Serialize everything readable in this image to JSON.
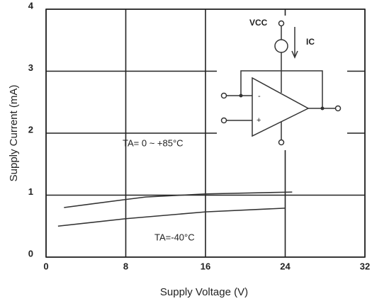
{
  "chart_data": {
    "type": "line",
    "x_label": "Supply Voltage (V)",
    "y_label": "Supply Current (mA)",
    "xlim": [
      0,
      32
    ],
    "xticks": [
      0,
      8,
      16,
      24,
      32
    ],
    "ylim": [
      0,
      4
    ],
    "yticks": [
      0,
      1,
      2,
      3,
      4
    ],
    "grid": true,
    "series": [
      {
        "name": "TA= 0 ~ +85°C",
        "color": "#333333",
        "x": [
          1.8,
          8,
          10,
          16,
          24.7
        ],
        "values": [
          0.8,
          0.93,
          0.97,
          1.02,
          1.05
        ]
      },
      {
        "name": "TA=-40°C",
        "color": "#333333",
        "x": [
          1.2,
          8,
          16,
          24
        ],
        "values": [
          0.5,
          0.62,
          0.73,
          0.79
        ]
      }
    ],
    "circuit_labels": {
      "supply": "VCC",
      "current": "IC",
      "minus": "-",
      "plus": "+"
    }
  }
}
